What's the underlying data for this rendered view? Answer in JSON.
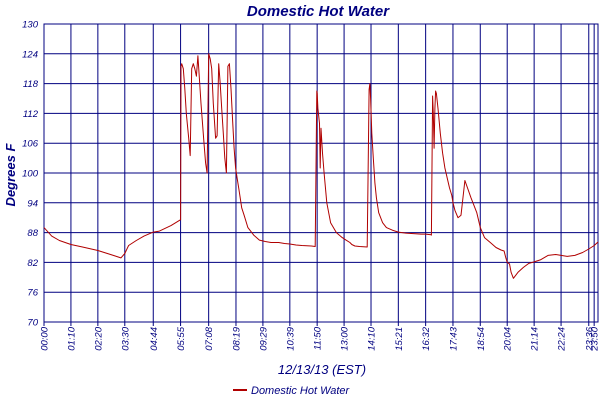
{
  "chart_data": {
    "type": "line",
    "title": "Domestic Hot Water",
    "xlabel": "12/13/13 (EST)",
    "ylabel": "Degrees F",
    "ylim": [
      70,
      130
    ],
    "yticks": [
      70,
      76,
      82,
      88,
      94,
      100,
      106,
      112,
      118,
      124,
      130
    ],
    "xlim": [
      0,
      1440
    ],
    "xtick_labels": [
      "00:00",
      "01:10",
      "02:20",
      "03:30",
      "04:44",
      "05:55",
      "07:08",
      "08:19",
      "09:29",
      "10:39",
      "11:50",
      "13:00",
      "14:10",
      "15:21",
      "16:32",
      "17:43",
      "18:54",
      "20:04",
      "21:14",
      "22:24",
      "23:36",
      "23:50"
    ],
    "xtick_minutes": [
      0,
      70,
      140,
      210,
      284,
      355,
      428,
      499,
      569,
      639,
      710,
      780,
      850,
      921,
      992,
      1063,
      1134,
      1204,
      1274,
      1344,
      1416,
      1430
    ],
    "grid": true,
    "legend_position": "bottom-center",
    "series": [
      {
        "name": "Domestic Hot Water",
        "color": "#b00000",
        "x": [
          0,
          20,
          40,
          70,
          100,
          140,
          180,
          200,
          210,
          220,
          240,
          260,
          284,
          300,
          330,
          355,
          356,
          358,
          362,
          366,
          370,
          376,
          380,
          384,
          388,
          392,
          396,
          400,
          404,
          408,
          412,
          416,
          420,
          424,
          428,
          432,
          436,
          440,
          446,
          450,
          454,
          458,
          462,
          466,
          470,
          474,
          478,
          482,
          486,
          490,
          494,
          498,
          502,
          506,
          510,
          514,
          520,
          530,
          545,
          560,
          575,
          590,
          610,
          625,
          639,
          655,
          670,
          695,
          705,
          709,
          710,
          712,
          716,
          718,
          720,
          724,
          728,
          735,
          745,
          760,
          775,
          785,
          795,
          800,
          808,
          820,
          840,
          845,
          847,
          849,
          852,
          856,
          860,
          864,
          870,
          880,
          890,
          905,
          921,
          940,
          960,
          980,
          992,
          1003,
          1005,
          1007,
          1010,
          1012,
          1014,
          1016,
          1018,
          1020,
          1024,
          1030,
          1036,
          1042,
          1048,
          1054,
          1060,
          1063,
          1068,
          1076,
          1084,
          1094,
          1110,
          1125,
          1134,
          1145,
          1160,
          1175,
          1188,
          1196,
          1200,
          1204,
          1210,
          1214,
          1220,
          1232,
          1246,
          1260,
          1274,
          1290,
          1310,
          1330,
          1344,
          1360,
          1380,
          1400,
          1416,
          1430,
          1440
        ],
        "y": [
          89,
          87.3,
          86.4,
          85.6,
          85.1,
          84.4,
          83.4,
          82.9,
          83.8,
          85.4,
          86.4,
          87.3,
          88.1,
          88.3,
          89.4,
          90.6,
          121.5,
          122,
          121,
          117,
          112,
          107,
          103.5,
          121,
          122,
          121,
          119.5,
          123.6,
          119,
          114,
          110,
          106,
          102,
          100,
          124,
          123,
          121,
          114,
          107,
          107.5,
          122,
          118,
          113,
          108,
          103,
          100,
          121.5,
          122,
          117,
          111,
          105,
          101,
          99,
          97,
          95,
          93,
          91.5,
          89,
          87.5,
          86.5,
          86.2,
          86,
          86,
          85.8,
          85.7,
          85.5,
          85.4,
          85.3,
          85.2,
          116.5,
          116,
          113,
          110,
          101,
          109,
          104,
          100,
          94,
          90,
          88,
          87,
          86.5,
          86,
          85.6,
          85.3,
          85.2,
          85.1,
          116.8,
          118,
          115,
          108,
          103,
          98,
          95,
          92,
          90,
          89,
          88.5,
          88.1,
          87.9,
          87.8,
          87.7,
          87.7,
          87.6,
          87.6,
          87.5,
          115.5,
          112,
          105,
          113,
          116.5,
          116,
          113,
          108,
          104,
          101,
          99,
          97,
          95.5,
          94,
          92.5,
          91,
          91.5,
          98.5,
          95,
          92,
          89,
          87,
          86,
          85,
          84.5,
          84.3,
          83,
          82,
          81.7,
          80,
          78.8,
          80,
          81,
          81.8,
          82.1,
          82.5,
          83.4,
          83.6,
          83.4,
          83.2,
          83.4,
          84,
          84.7,
          85.4,
          86.1
        ]
      }
    ]
  }
}
